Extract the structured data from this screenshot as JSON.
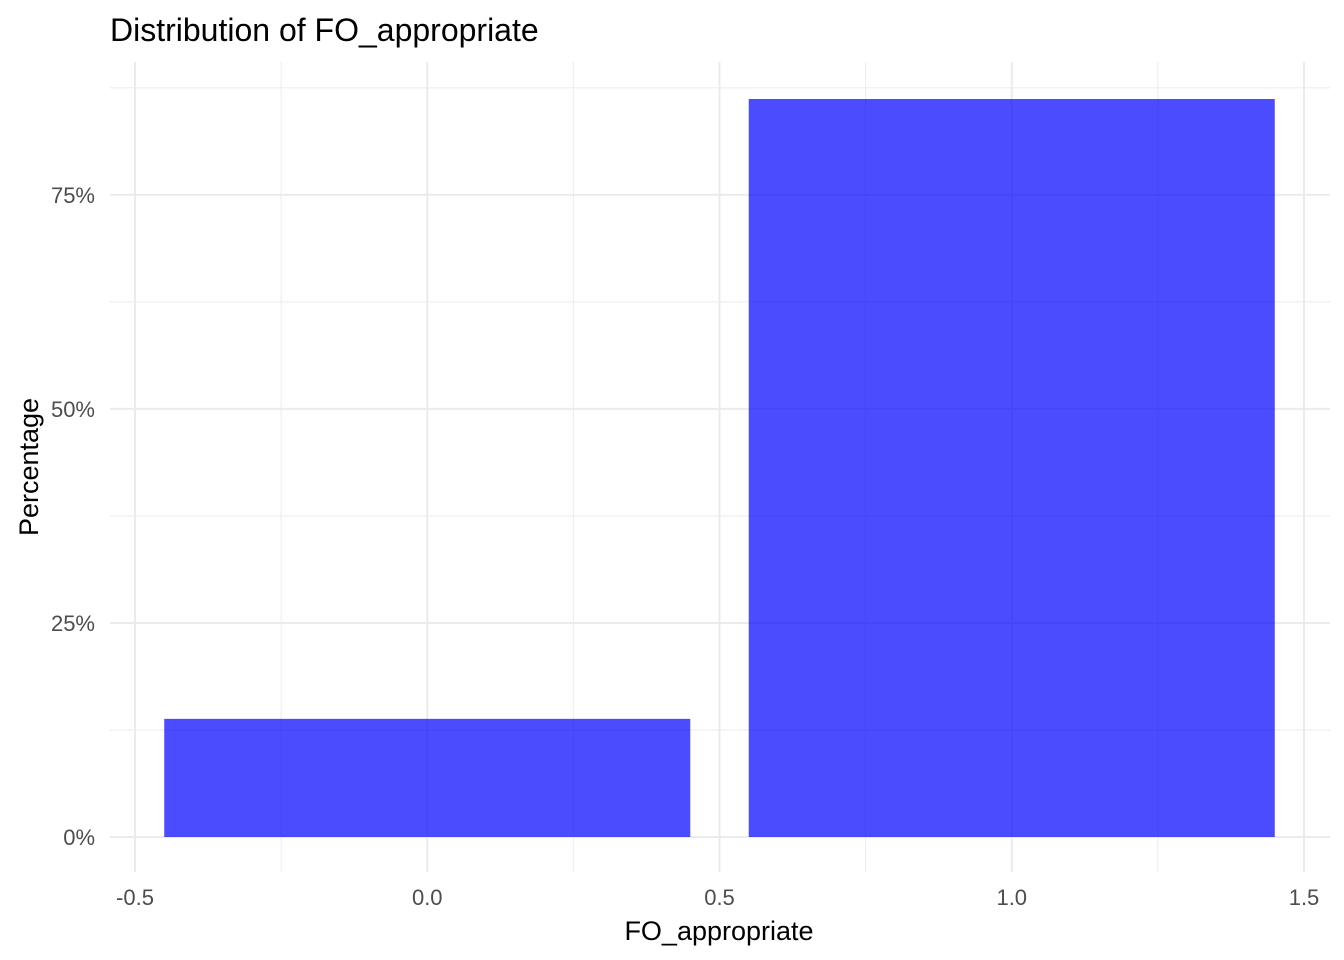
{
  "chart_data": {
    "type": "bar",
    "title": "Distribution of FO_appropriate",
    "xlabel": "FO_appropriate",
    "ylabel": "Percentage",
    "bars": [
      {
        "category": "0",
        "x": 0,
        "width": 0.9,
        "value": 13.8
      },
      {
        "category": "1",
        "x": 1,
        "width": 0.9,
        "value": 86.2
      }
    ],
    "xlim": [
      -0.5,
      1.5
    ],
    "ylim": [
      0,
      86.2
    ],
    "x_ticks": [
      {
        "value": -0.5,
        "label": "-0.5"
      },
      {
        "value": 0.0,
        "label": "0.0"
      },
      {
        "value": 0.5,
        "label": "0.5"
      },
      {
        "value": 1.0,
        "label": "1.0"
      },
      {
        "value": 1.5,
        "label": "1.5"
      }
    ],
    "y_ticks": [
      {
        "value": 0,
        "label": "0%"
      },
      {
        "value": 25,
        "label": "25%"
      },
      {
        "value": 50,
        "label": "50%"
      },
      {
        "value": 75,
        "label": "75%"
      }
    ],
    "bar_color": "#0000FF",
    "bar_opacity": 0.7,
    "grid": true,
    "legend": "none"
  }
}
